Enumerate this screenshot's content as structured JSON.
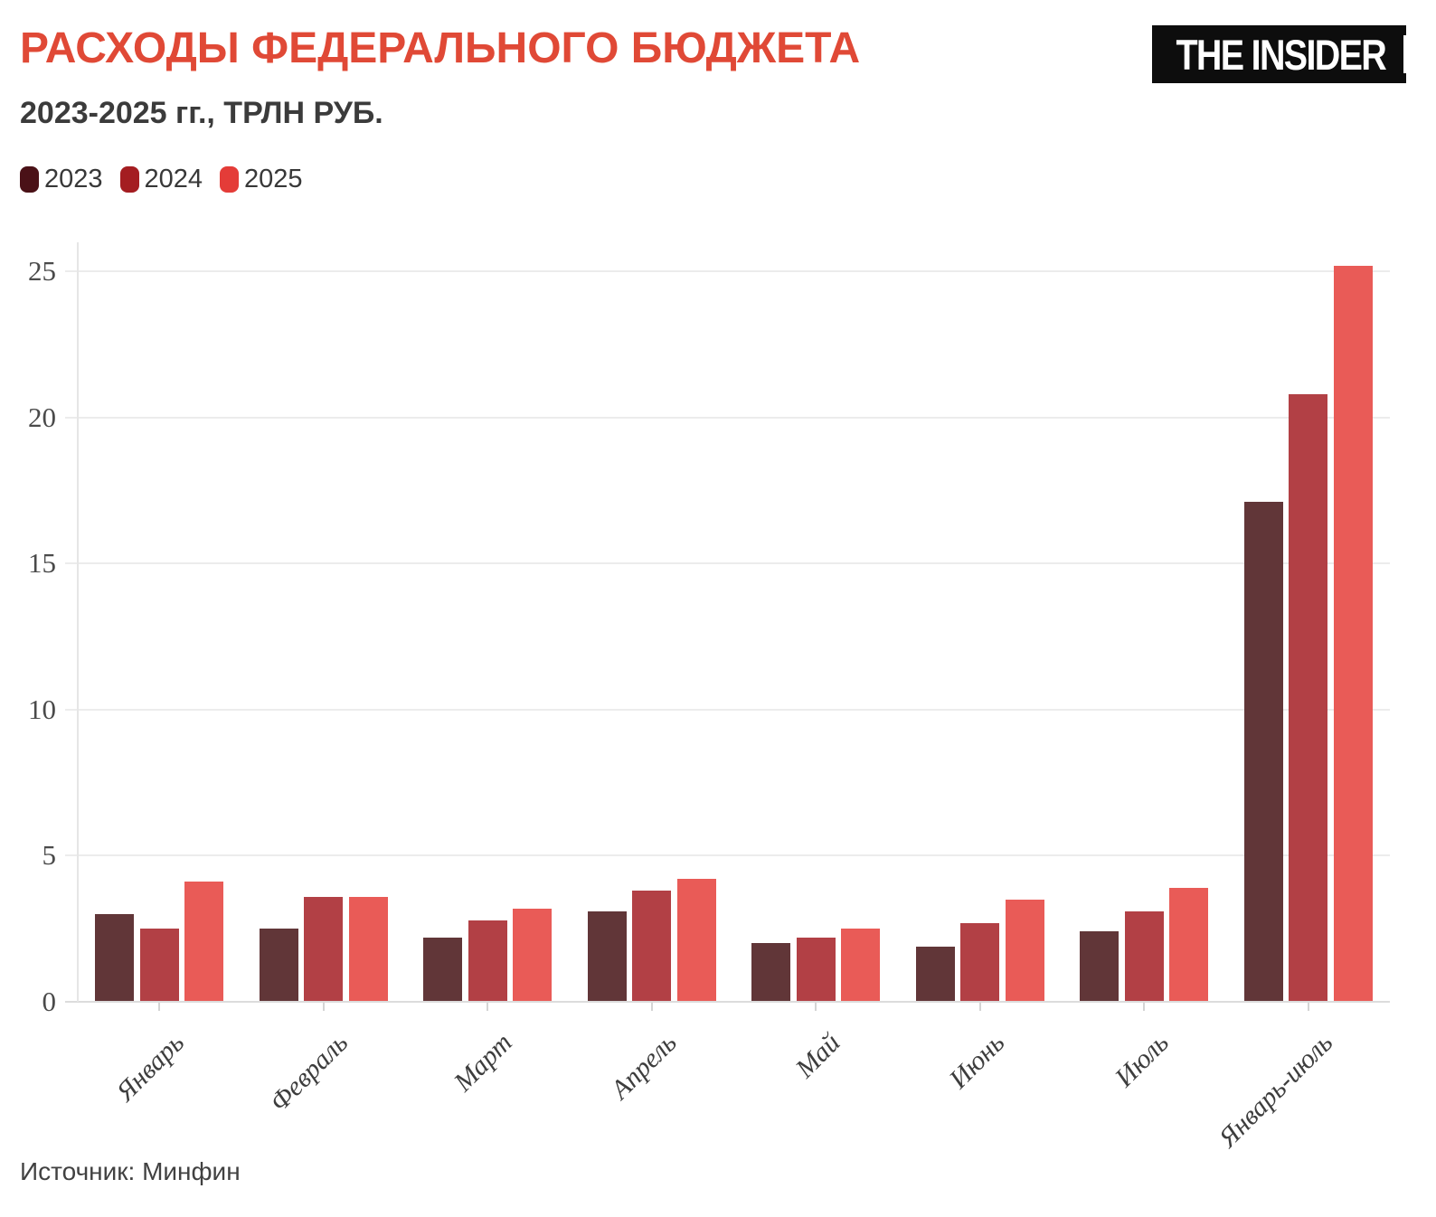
{
  "header": {
    "title": "РАСХОДЫ ФЕДЕРАЛЬНОГО БЮДЖЕТА",
    "subtitle": "2023-2025 гг., ТРЛН РУБ.",
    "brand": "THE INSIDER"
  },
  "legend": {
    "items": [
      {
        "label": "2023",
        "color": "#4A1117"
      },
      {
        "label": "2024",
        "color": "#A41D21"
      },
      {
        "label": "2025",
        "color": "#E43C38"
      }
    ]
  },
  "chart_data": {
    "type": "bar",
    "title": "РАСХОДЫ ФЕДЕРАЛЬНОГО БЮДЖЕТА",
    "subtitle": "2023-2025 гг., ТРЛН РУБ.",
    "categories": [
      "Январь",
      "Февраль",
      "Март",
      "Апрель",
      "Май",
      "Июнь",
      "Июль",
      "Январь-июль"
    ],
    "series": [
      {
        "name": "2023",
        "color": "#613638",
        "values": [
          3.0,
          2.5,
          2.2,
          3.1,
          2.0,
          1.9,
          2.4,
          17.1
        ]
      },
      {
        "name": "2024",
        "color": "#B24045",
        "values": [
          2.5,
          3.6,
          2.8,
          3.8,
          2.2,
          2.7,
          3.1,
          20.8
        ]
      },
      {
        "name": "2025",
        "color": "#E95B57",
        "values": [
          4.1,
          3.6,
          3.2,
          4.2,
          2.5,
          3.5,
          3.9,
          25.2
        ]
      }
    ],
    "yticks": [
      0,
      5,
      10,
      15,
      20,
      25
    ],
    "ylim": [
      0,
      26
    ],
    "grid": true,
    "legend_position": "top-left",
    "xlabel": "",
    "ylabel": ""
  },
  "footer": {
    "source": "Источник: Минфин"
  },
  "colors": {
    "title": "#E04936",
    "subtitle": "#3B3B3B",
    "background": "#FFFFFF",
    "grid": "#ECECEC",
    "axis": "#DCDCDC"
  }
}
